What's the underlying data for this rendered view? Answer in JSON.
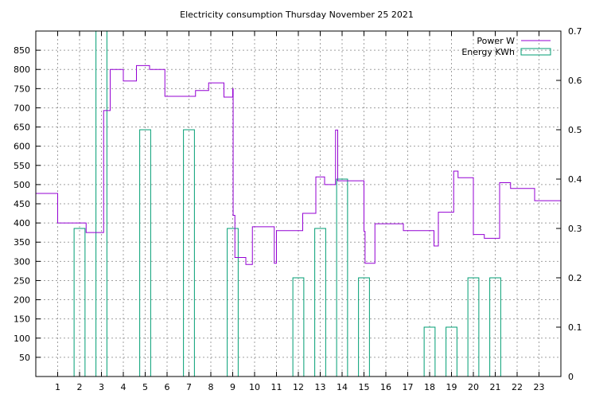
{
  "chart_data": {
    "type": "line",
    "title": "Electricity consumption Thursday November 25 2021",
    "x_range": [
      0,
      24
    ],
    "x_ticks": [
      1,
      2,
      3,
      4,
      5,
      6,
      7,
      8,
      9,
      10,
      11,
      12,
      13,
      14,
      15,
      16,
      17,
      18,
      19,
      20,
      21,
      22,
      23
    ],
    "y_left": {
      "range": [
        0,
        900
      ],
      "ticks": [
        50,
        100,
        150,
        200,
        250,
        300,
        350,
        400,
        450,
        500,
        550,
        600,
        650,
        700,
        750,
        800,
        850
      ]
    },
    "y_right": {
      "range": [
        0,
        0.7
      ],
      "ticks": [
        "0",
        "0.1",
        "0.2",
        "0.3",
        "0.4",
        "0.5",
        "0.6",
        "0.7"
      ]
    },
    "grid": true,
    "legend_position": "top-right",
    "colors": {
      "power": "#9400d3",
      "energy": "#009e73"
    },
    "series": [
      {
        "name": "Power W",
        "axis": "left",
        "style": "steps",
        "points": [
          [
            0,
            477
          ],
          [
            0.1,
            477
          ],
          [
            1,
            477
          ],
          [
            1,
            400
          ],
          [
            2.3,
            400
          ],
          [
            2.3,
            375
          ],
          [
            3.1,
            375
          ],
          [
            3.1,
            693
          ],
          [
            3.4,
            693
          ],
          [
            3.4,
            800
          ],
          [
            4,
            800
          ],
          [
            4,
            770
          ],
          [
            4.6,
            770
          ],
          [
            4.6,
            810
          ],
          [
            5.2,
            810
          ],
          [
            5.2,
            800
          ],
          [
            5.9,
            800
          ],
          [
            5.9,
            730
          ],
          [
            7.3,
            730
          ],
          [
            7.3,
            745
          ],
          [
            7.9,
            745
          ],
          [
            7.9,
            765
          ],
          [
            8.6,
            765
          ],
          [
            8.6,
            728
          ],
          [
            9.0,
            728
          ],
          [
            9.0,
            750
          ],
          [
            9.02,
            750
          ],
          [
            9.02,
            420
          ],
          [
            9.1,
            420
          ],
          [
            9.1,
            310
          ],
          [
            9.6,
            310
          ],
          [
            9.6,
            292
          ],
          [
            9.9,
            292
          ],
          [
            9.9,
            390
          ],
          [
            10.9,
            390
          ],
          [
            10.9,
            295
          ],
          [
            11,
            295
          ],
          [
            11,
            380
          ],
          [
            12.2,
            380
          ],
          [
            12.2,
            425
          ],
          [
            12.8,
            425
          ],
          [
            12.8,
            520
          ],
          [
            13.2,
            520
          ],
          [
            13.2,
            500
          ],
          [
            13.7,
            500
          ],
          [
            13.7,
            642
          ],
          [
            13.8,
            642
          ],
          [
            13.8,
            510
          ],
          [
            15,
            510
          ],
          [
            15,
            378
          ],
          [
            15.05,
            378
          ],
          [
            15.05,
            295
          ],
          [
            15.5,
            295
          ],
          [
            15.5,
            398
          ],
          [
            16.8,
            398
          ],
          [
            16.8,
            380
          ],
          [
            18.2,
            380
          ],
          [
            18.2,
            340
          ],
          [
            18.4,
            340
          ],
          [
            18.4,
            428
          ],
          [
            19.1,
            428
          ],
          [
            19.1,
            535
          ],
          [
            19.3,
            535
          ],
          [
            19.3,
            518
          ],
          [
            20,
            518
          ],
          [
            20,
            370
          ],
          [
            20.5,
            370
          ],
          [
            20.5,
            360
          ],
          [
            21.2,
            360
          ],
          [
            21.2,
            505
          ],
          [
            21.7,
            505
          ],
          [
            21.7,
            490
          ],
          [
            22.8,
            490
          ],
          [
            22.8,
            458
          ],
          [
            24,
            458
          ]
        ]
      },
      {
        "name": "Energy KWh",
        "axis": "right",
        "style": "bars",
        "bars": [
          {
            "x": 2,
            "value": 0.3
          },
          {
            "x": 3,
            "value": 0.7
          },
          {
            "x": 5,
            "value": 0.5
          },
          {
            "x": 7,
            "value": 0.5
          },
          {
            "x": 9,
            "value": 0.3
          },
          {
            "x": 12,
            "value": 0.2
          },
          {
            "x": 13,
            "value": 0.3
          },
          {
            "x": 14,
            "value": 0.4
          },
          {
            "x": 15,
            "value": 0.2
          },
          {
            "x": 18,
            "value": 0.1
          },
          {
            "x": 19,
            "value": 0.1
          },
          {
            "x": 20,
            "value": 0.2
          },
          {
            "x": 21,
            "value": 0.2
          }
        ]
      }
    ]
  }
}
